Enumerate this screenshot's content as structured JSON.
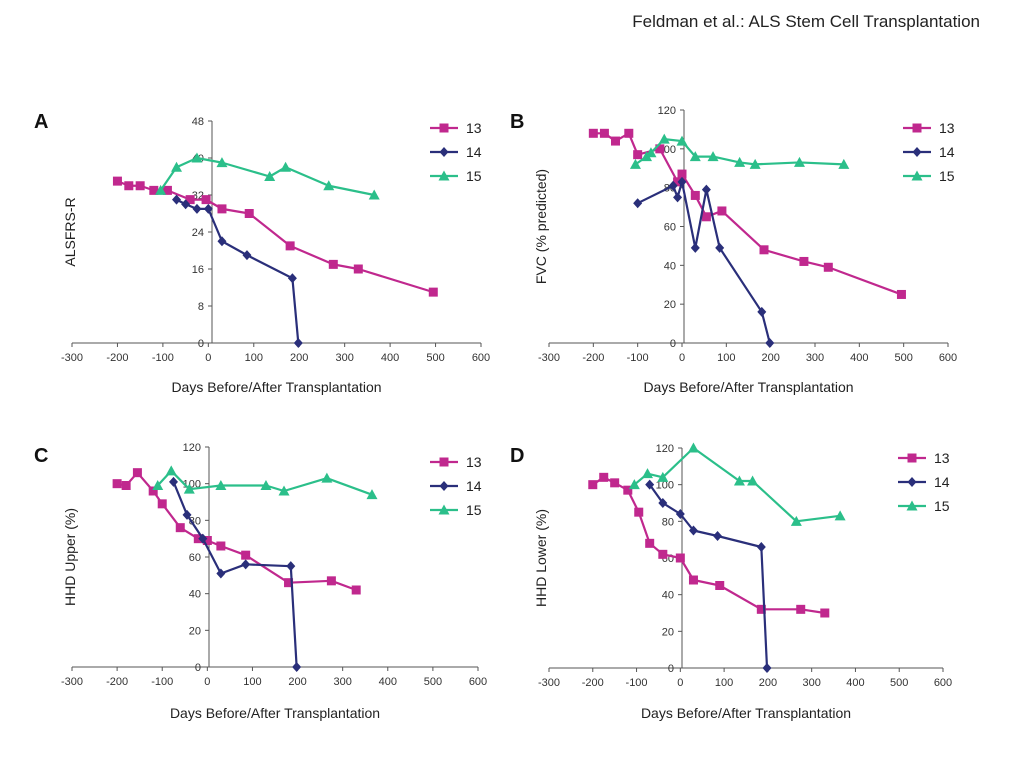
{
  "header": {
    "text": "Feldman et al.: ALS Stem Cell Transplantation"
  },
  "colors": {
    "13": "#c0288e",
    "14": "#2a2f7a",
    "15": "#2bbf8a"
  },
  "chart_data": [
    {
      "type": "line",
      "panel": "A",
      "xlabel": "Days Before/After Transplantation",
      "ylabel": "ALSFRS-R",
      "xlim": [
        -300,
        600
      ],
      "ylim": [
        0,
        48
      ],
      "xticks": [
        -300,
        -200,
        -100,
        0,
        100,
        200,
        300,
        400,
        500,
        600
      ],
      "yticks": [
        0,
        8,
        16,
        24,
        32,
        40,
        48
      ],
      "legend": "top-right",
      "series": [
        {
          "name": "13",
          "marker": "square",
          "points": [
            [
              -200,
              35
            ],
            [
              -175,
              34
            ],
            [
              -150,
              34
            ],
            [
              -120,
              33
            ],
            [
              -90,
              33
            ],
            [
              -40,
              31
            ],
            [
              -5,
              31
            ],
            [
              30,
              29
            ],
            [
              90,
              28
            ],
            [
              180,
              21
            ],
            [
              275,
              17
            ],
            [
              330,
              16
            ],
            [
              495,
              11
            ]
          ]
        },
        {
          "name": "14",
          "marker": "diamond",
          "points": [
            [
              -70,
              31
            ],
            [
              -50,
              30
            ],
            [
              -25,
              29
            ],
            [
              0,
              29
            ],
            [
              30,
              22
            ],
            [
              85,
              19
            ],
            [
              185,
              14
            ],
            [
              198,
              0
            ]
          ]
        },
        {
          "name": "15",
          "marker": "triangle",
          "points": [
            [
              -105,
              33
            ],
            [
              -70,
              38
            ],
            [
              -25,
              40
            ],
            [
              30,
              39
            ],
            [
              135,
              36
            ],
            [
              170,
              38
            ],
            [
              265,
              34
            ],
            [
              365,
              32
            ]
          ]
        }
      ]
    },
    {
      "type": "line",
      "panel": "B",
      "xlabel": "Days Before/After Transplantation",
      "ylabel": "FVC (% predicted)",
      "xlim": [
        -300,
        600
      ],
      "ylim": [
        0,
        120
      ],
      "xticks": [
        -300,
        -200,
        -100,
        0,
        100,
        200,
        300,
        400,
        500,
        600
      ],
      "yticks": [
        0,
        20,
        40,
        60,
        80,
        100,
        120
      ],
      "legend": "top-right",
      "series": [
        {
          "name": "13",
          "marker": "square",
          "points": [
            [
              -200,
              108
            ],
            [
              -175,
              108
            ],
            [
              -150,
              104
            ],
            [
              -120,
              108
            ],
            [
              -100,
              97
            ],
            [
              -50,
              100
            ],
            [
              -10,
              83
            ],
            [
              0,
              87
            ],
            [
              30,
              76
            ],
            [
              55,
              65
            ],
            [
              90,
              68
            ],
            [
              185,
              48
            ],
            [
              275,
              42
            ],
            [
              330,
              39
            ],
            [
              495,
              25
            ]
          ]
        },
        {
          "name": "14",
          "marker": "diamond",
          "points": [
            [
              -100,
              72
            ],
            [
              -20,
              81
            ],
            [
              -10,
              75
            ],
            [
              0,
              83
            ],
            [
              30,
              49
            ],
            [
              55,
              79
            ],
            [
              85,
              49
            ],
            [
              180,
              16
            ],
            [
              198,
              0
            ]
          ]
        },
        {
          "name": "15",
          "marker": "triangle",
          "points": [
            [
              -105,
              92
            ],
            [
              -80,
              96
            ],
            [
              -70,
              98
            ],
            [
              -40,
              105
            ],
            [
              0,
              104
            ],
            [
              30,
              96
            ],
            [
              70,
              96
            ],
            [
              130,
              93
            ],
            [
              165,
              92
            ],
            [
              265,
              93
            ],
            [
              365,
              92
            ]
          ]
        }
      ]
    },
    {
      "type": "line",
      "panel": "C",
      "xlabel": "Days Before/After Transplantation",
      "ylabel": "HHD Upper (%)",
      "xlim": [
        -300,
        600
      ],
      "ylim": [
        0,
        120
      ],
      "xticks": [
        -300,
        -200,
        -100,
        0,
        100,
        200,
        300,
        400,
        500,
        600
      ],
      "yticks": [
        0,
        20,
        40,
        60,
        80,
        100,
        120
      ],
      "legend": "top-right",
      "series": [
        {
          "name": "13",
          "marker": "square",
          "points": [
            [
              -200,
              100
            ],
            [
              -180,
              99
            ],
            [
              -155,
              106
            ],
            [
              -120,
              96
            ],
            [
              -100,
              89
            ],
            [
              -60,
              76
            ],
            [
              -20,
              70
            ],
            [
              0,
              69
            ],
            [
              30,
              66
            ],
            [
              85,
              61
            ],
            [
              180,
              46
            ],
            [
              275,
              47
            ],
            [
              330,
              42
            ]
          ]
        },
        {
          "name": "14",
          "marker": "diamond",
          "points": [
            [
              -75,
              101
            ],
            [
              -45,
              83
            ],
            [
              -10,
              70
            ],
            [
              30,
              51
            ],
            [
              85,
              56
            ],
            [
              185,
              55
            ],
            [
              198,
              0
            ]
          ]
        },
        {
          "name": "15",
          "marker": "triangle",
          "points": [
            [
              -110,
              99
            ],
            [
              -80,
              107
            ],
            [
              -40,
              97
            ],
            [
              30,
              99
            ],
            [
              130,
              99
            ],
            [
              170,
              96
            ],
            [
              265,
              103
            ],
            [
              365,
              94
            ]
          ]
        }
      ]
    },
    {
      "type": "line",
      "panel": "D",
      "xlabel": "Days Before/After Transplantation",
      "ylabel": "HHD Lower (%)",
      "xlim": [
        -300,
        600
      ],
      "ylim": [
        0,
        120
      ],
      "xticks": [
        -300,
        -200,
        -100,
        0,
        100,
        200,
        300,
        400,
        500,
        600
      ],
      "yticks": [
        0,
        20,
        40,
        60,
        80,
        100,
        120
      ],
      "legend": "top-right",
      "series": [
        {
          "name": "13",
          "marker": "square",
          "points": [
            [
              -200,
              100
            ],
            [
              -175,
              104
            ],
            [
              -150,
              101
            ],
            [
              -120,
              97
            ],
            [
              -95,
              85
            ],
            [
              -70,
              68
            ],
            [
              -40,
              62
            ],
            [
              0,
              60
            ],
            [
              30,
              48
            ],
            [
              90,
              45
            ],
            [
              185,
              32
            ],
            [
              275,
              32
            ],
            [
              330,
              30
            ]
          ]
        },
        {
          "name": "14",
          "marker": "diamond",
          "points": [
            [
              -70,
              100
            ],
            [
              -40,
              90
            ],
            [
              0,
              84
            ],
            [
              30,
              75
            ],
            [
              85,
              72
            ],
            [
              185,
              66
            ],
            [
              198,
              0
            ]
          ]
        },
        {
          "name": "15",
          "marker": "triangle",
          "points": [
            [
              -105,
              100
            ],
            [
              -75,
              106
            ],
            [
              -40,
              104
            ],
            [
              30,
              120
            ],
            [
              135,
              102
            ],
            [
              165,
              102
            ],
            [
              265,
              80
            ],
            [
              365,
              83
            ]
          ]
        }
      ]
    }
  ]
}
